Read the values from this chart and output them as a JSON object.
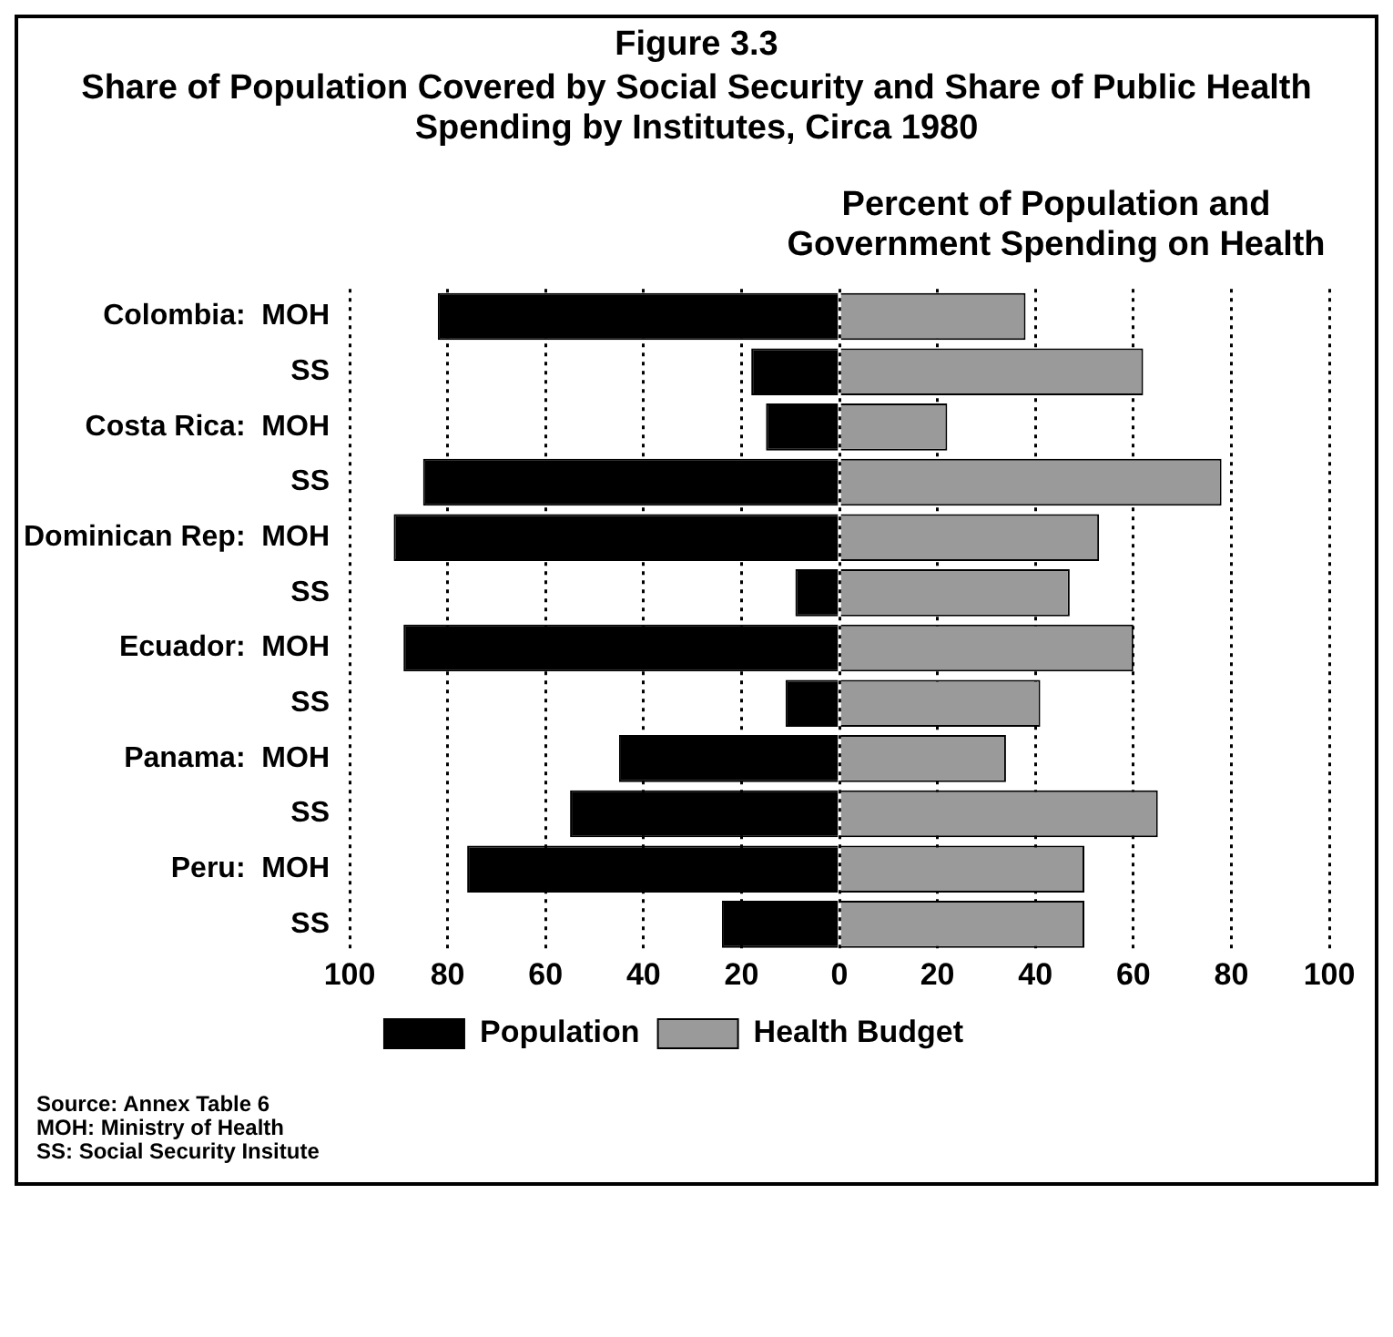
{
  "chart_data": {
    "type": "bar",
    "orientation": "horizontal",
    "title": "Figure 3.3",
    "subtitle": "Share of Population Covered by Social Security and Share of Public Health Spending by Institutes, Circa 1980",
    "xlabel": "Percent of Population and Government Spending on Health",
    "categories": [
      "Colombia:  MOH",
      "SS",
      "Costa Rica:  MOH",
      "SS",
      "Dominican Rep:  MOH",
      "SS",
      "Ecuador:  MOH",
      "SS",
      "Panama:  MOH",
      "SS",
      "Peru:  MOH",
      "SS"
    ],
    "series": [
      {
        "name": "Population",
        "color": "#000000",
        "values": [
          -82,
          -18,
          -15,
          -85,
          -91,
          -9,
          -89,
          -11,
          -45,
          -55,
          -76,
          -24
        ]
      },
      {
        "name": "Health Budget",
        "color": "#9a9a9a",
        "values": [
          38,
          62,
          22,
          78,
          53,
          47,
          60,
          41,
          34,
          65,
          50,
          50
        ]
      }
    ],
    "xlim": [
      -100,
      100
    ],
    "xticks": [
      {
        "value": -100,
        "label": "100"
      },
      {
        "value": -80,
        "label": "80"
      },
      {
        "value": -60,
        "label": "60"
      },
      {
        "value": -40,
        "label": "40"
      },
      {
        "value": -20,
        "label": "20"
      },
      0,
      20,
      40,
      60,
      80,
      100
    ],
    "grid": "x",
    "legend": "bottom",
    "stacked": true,
    "annotations": [
      "Source:  Annex Table 6",
      "MOH:  Ministry of Health",
      "SS:  Social Security Insitute"
    ]
  }
}
